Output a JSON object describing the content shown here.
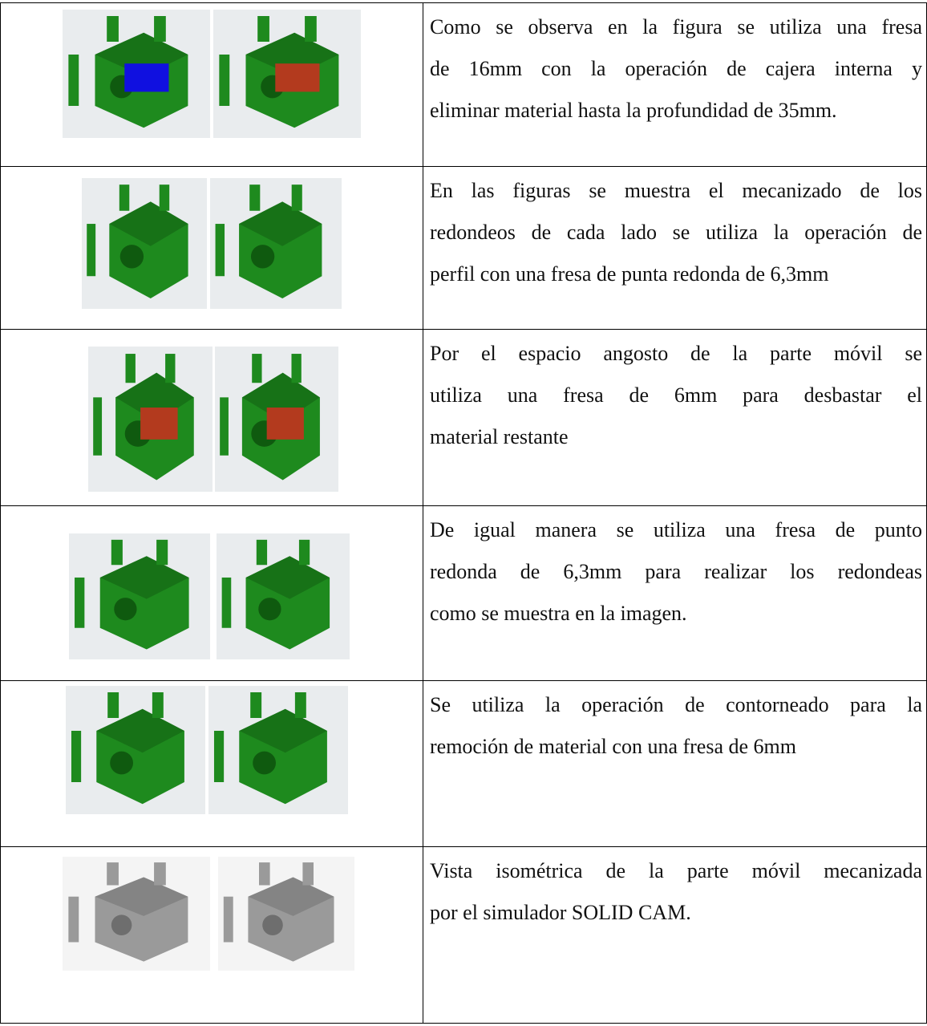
{
  "table": {
    "rows": [
      {
        "text": [
          "Como se observa en la figura se utiliza una fresa",
          "de 16mm con la operación de cajera interna y",
          "eliminar material hasta la profundidad de 35mm."
        ]
      },
      {
        "text": [
          "En las figuras se muestra el mecanizado de los",
          "redondeos de cada lado se utiliza la operación de",
          "perfil con una fresa de punta redonda de 6,3mm"
        ]
      },
      {
        "text": [
          "Por el espacio angosto de la parte móvil se",
          "utiliza una fresa de 6mm para desbastar el",
          "material restante"
        ]
      },
      {
        "text": [
          "De igual manera se utiliza una fresa de punto",
          "redonda de 6,3mm para realizar los redondeas",
          "como se muestra en la imagen."
        ]
      },
      {
        "text": [
          "Se utiliza la operación de contorneado para la",
          "remoción de material con una fresa de 6mm"
        ]
      },
      {
        "text": [
          "Vista isométrica de la parte móvil mecanizada",
          "por el simulador SOLID CAM."
        ]
      }
    ]
  }
}
